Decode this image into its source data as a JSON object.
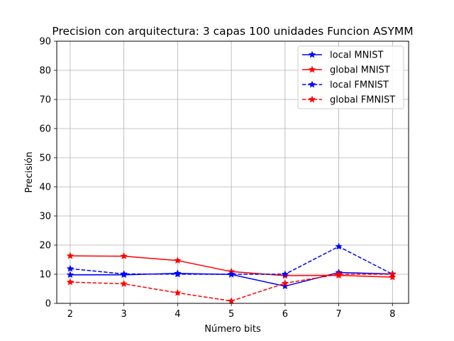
{
  "chart_data": {
    "type": "line",
    "title": "Precision con arquitectura: 3 capas 100 unidades Funcion ASYMM",
    "xlabel": "Número bits",
    "ylabel": "Precisión",
    "x": [
      2,
      3,
      4,
      5,
      6,
      7,
      8
    ],
    "xlim": [
      1.75,
      8.3
    ],
    "ylim": [
      0,
      90
    ],
    "xticks": [
      "2",
      "3",
      "4",
      "5",
      "6",
      "7",
      "8"
    ],
    "yticks": [
      "0",
      "10",
      "20",
      "30",
      "40",
      "50",
      "60",
      "70",
      "80",
      "90"
    ],
    "grid": true,
    "legend_position": "top-right",
    "series": [
      {
        "name": "local MNIST",
        "color": "#0000ff",
        "linestyle": "solid",
        "marker": "star",
        "values": [
          9.8,
          9.8,
          10.3,
          9.9,
          5.9,
          10.6,
          10.1
        ]
      },
      {
        "name": "global MNIST",
        "color": "#ff0000",
        "linestyle": "solid",
        "marker": "star",
        "values": [
          16.3,
          16.2,
          14.7,
          10.9,
          9.5,
          9.6,
          9.0
        ]
      },
      {
        "name": "local FMNIST",
        "color": "#0000ff",
        "linestyle": "dashed",
        "marker": "star",
        "values": [
          11.9,
          10.1,
          10.0,
          10.0,
          10.0,
          19.5,
          10.0
        ]
      },
      {
        "name": "global FMNIST",
        "color": "#ff0000",
        "linestyle": "dashed",
        "marker": "star",
        "values": [
          7.3,
          6.7,
          3.6,
          0.8,
          6.9,
          10.0,
          10.0
        ]
      }
    ]
  }
}
